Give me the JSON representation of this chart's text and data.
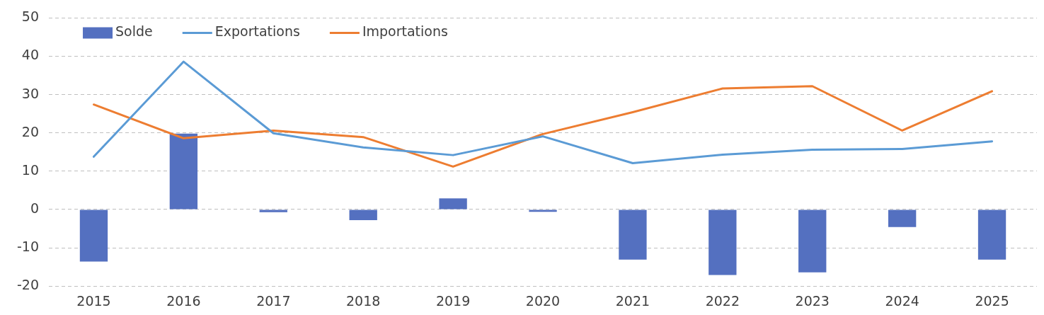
{
  "chart_data": {
    "type": "line",
    "categories": [
      "2015",
      "2016",
      "2017",
      "2018",
      "2019",
      "2020",
      "2021",
      "2022",
      "2023",
      "2024",
      "2025"
    ],
    "series": [
      {
        "name": "Solde",
        "type": "bar",
        "color": "#5470c0",
        "values": [
          -13.6,
          19.8,
          -0.7,
          -2.8,
          2.9,
          -0.6,
          -13.1,
          -17.1,
          -16.4,
          -4.6,
          -13.1
        ]
      },
      {
        "name": "Exportations",
        "color": "#5b9bd5",
        "values": [
          13.8,
          38.6,
          19.9,
          16.2,
          14.2,
          19.1,
          12.1,
          14.3,
          15.6,
          15.8,
          17.8
        ]
      },
      {
        "name": "Importations",
        "color": "#ed7d31",
        "values": [
          27.4,
          18.6,
          20.6,
          18.9,
          11.2,
          19.7,
          25.4,
          31.6,
          32.2,
          20.6,
          30.9
        ]
      }
    ],
    "ylim": [
      -20,
      50
    ],
    "yticks": [
      -20,
      -10,
      0,
      10,
      20,
      30,
      40,
      50
    ],
    "grid": "y",
    "legend": "top left",
    "marker": "none",
    "line_style": "solid"
  }
}
